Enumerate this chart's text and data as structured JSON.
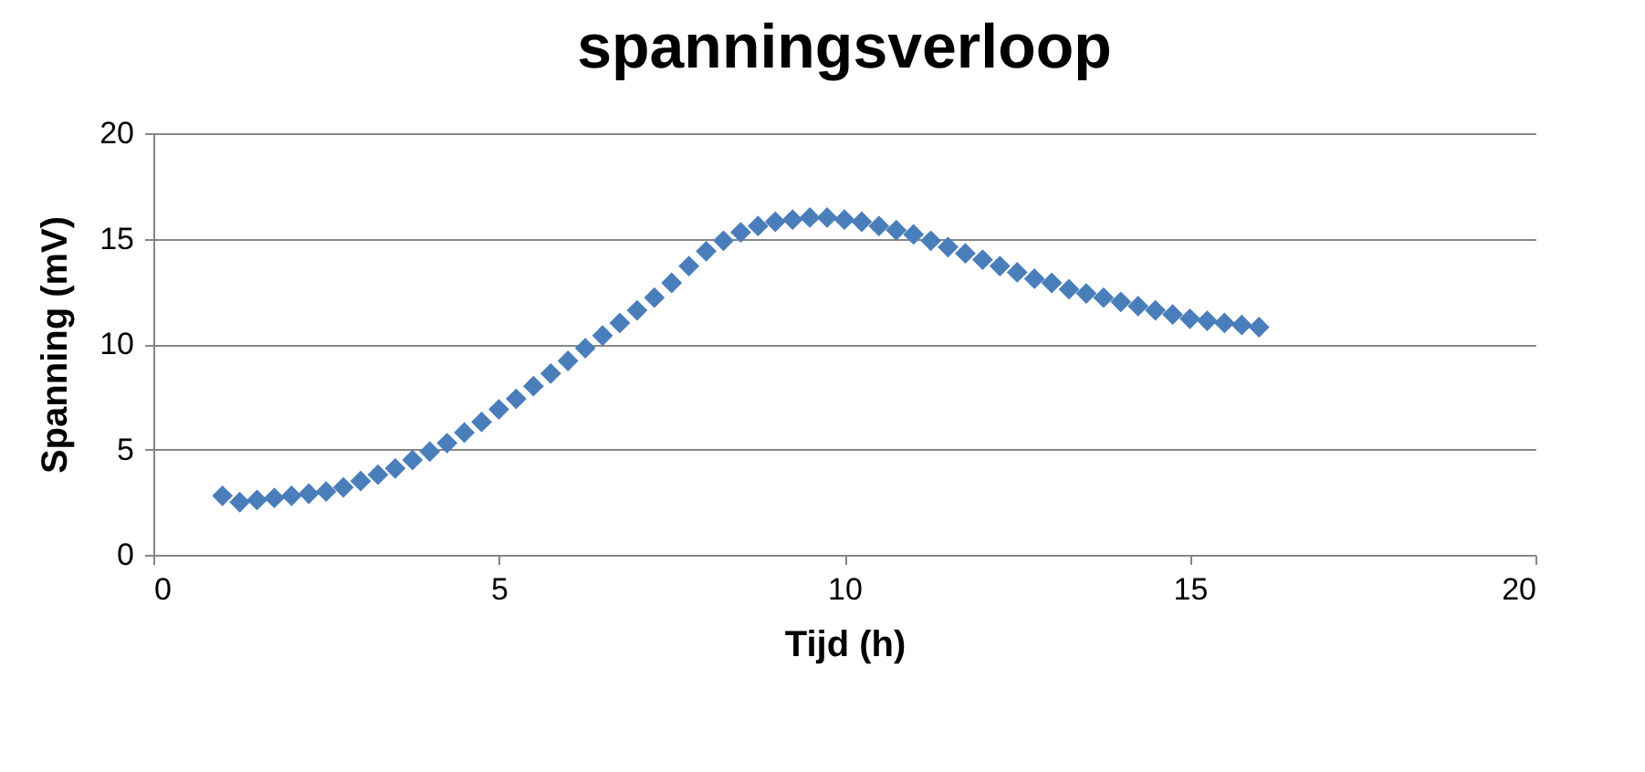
{
  "chart_data": {
    "type": "scatter",
    "title": "spanningsverloop",
    "xlabel": "Tijd (h)",
    "ylabel": "Spanning (mV)",
    "xlim": [
      0,
      20
    ],
    "xticks": [
      0,
      5,
      10,
      15,
      20
    ],
    "ylim": [
      0,
      20
    ],
    "yticks": [
      0,
      5,
      10,
      15,
      20
    ],
    "grid": "y",
    "marker": "diamond",
    "series": [
      {
        "color": "#4a7ebb",
        "x": [
          1,
          1.25,
          1.5,
          1.75,
          2,
          2.25,
          2.5,
          2.75,
          3,
          3.25,
          3.5,
          3.75,
          4,
          4.25,
          4.5,
          4.75,
          5,
          5.25,
          5.5,
          5.75,
          6,
          6.25,
          6.5,
          6.75,
          7,
          7.25,
          7.5,
          7.75,
          8,
          8.25,
          8.5,
          8.75,
          9,
          9.25,
          9.5,
          9.75,
          10,
          10.25,
          10.5,
          10.75,
          11,
          11.25,
          11.5,
          11.75,
          12,
          12.25,
          12.5,
          12.75,
          13,
          13.25,
          13.5,
          13.75,
          14,
          14.25,
          14.5,
          14.75,
          15,
          15.25,
          15.5,
          15.75,
          16
        ],
        "values": [
          2.8,
          2.5,
          2.6,
          2.7,
          2.8,
          2.9,
          3.0,
          3.2,
          3.5,
          3.8,
          4.1,
          4.5,
          4.9,
          5.3,
          5.8,
          6.3,
          6.9,
          7.4,
          8.0,
          8.6,
          9.2,
          9.8,
          10.4,
          11.0,
          11.6,
          12.2,
          12.9,
          13.7,
          14.4,
          14.9,
          15.3,
          15.6,
          15.8,
          15.9,
          16.0,
          16.0,
          15.9,
          15.8,
          15.6,
          15.4,
          15.2,
          14.9,
          14.6,
          14.3,
          14.0,
          13.7,
          13.4,
          13.1,
          12.9,
          12.6,
          12.4,
          12.2,
          12.0,
          11.8,
          11.6,
          11.4,
          11.2,
          11.1,
          11.0,
          10.9,
          10.8
        ]
      }
    ]
  }
}
